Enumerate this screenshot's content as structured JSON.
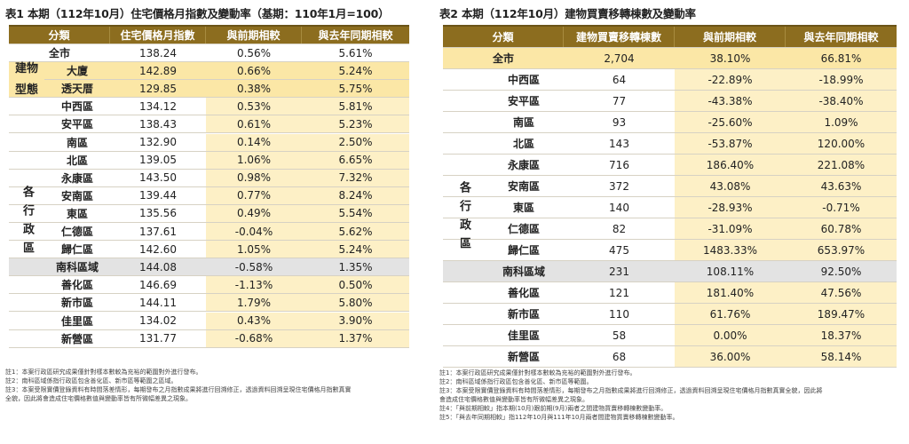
{
  "left": {
    "title": "表1 本期（112年10月）住宅價格月指數及變動率（基期：110年1月=100）",
    "headers": [
      "分類",
      "住宅價格月指數",
      "與前期相較",
      "與去年同期相較"
    ],
    "total": {
      "label": "全市",
      "values": [
        "138.24",
        "0.56%",
        "5.61%"
      ]
    },
    "group1_label": "建物型態",
    "group1_label_line1": "建物",
    "group1_label_line2": "型態",
    "group1": [
      {
        "label": "大廈",
        "values": [
          "142.89",
          "0.66%",
          "5.24%"
        ]
      },
      {
        "label": "透天厝",
        "values": [
          "129.85",
          "0.38%",
          "5.75%"
        ]
      }
    ],
    "group2_label": "各行政區",
    "group2": [
      {
        "label": "中西區",
        "values": [
          "134.12",
          "0.53%",
          "5.81%"
        ]
      },
      {
        "label": "安平區",
        "values": [
          "138.43",
          "0.61%",
          "5.23%"
        ]
      },
      {
        "label": "南區",
        "values": [
          "132.90",
          "0.14%",
          "2.50%"
        ]
      },
      {
        "label": "北區",
        "values": [
          "139.05",
          "1.06%",
          "6.65%"
        ]
      },
      {
        "label": "永康區",
        "values": [
          "143.50",
          "0.98%",
          "7.32%"
        ]
      },
      {
        "label": "安南區",
        "values": [
          "139.44",
          "0.77%",
          "8.24%"
        ]
      },
      {
        "label": "東區",
        "values": [
          "135.56",
          "0.49%",
          "5.54%"
        ]
      },
      {
        "label": "仁德區",
        "values": [
          "137.61",
          "-0.04%",
          "5.62%"
        ]
      },
      {
        "label": "歸仁區",
        "values": [
          "142.60",
          "1.05%",
          "5.24%"
        ]
      },
      {
        "label": "南科區域",
        "values": [
          "144.08",
          "-0.58%",
          "1.35%"
        ]
      },
      {
        "label": "善化區",
        "values": [
          "146.69",
          "-1.13%",
          "0.50%"
        ]
      },
      {
        "label": "新市區",
        "values": [
          "144.11",
          "1.79%",
          "5.80%"
        ]
      },
      {
        "label": "佳里區",
        "values": [
          "134.02",
          "0.43%",
          "3.90%"
        ]
      },
      {
        "label": "新營區",
        "values": [
          "131.77",
          "-0.68%",
          "1.37%"
        ]
      }
    ],
    "notes": [
      "註1：本案行政區研究成果僅針對樣本數較為充裕的範圍對外進行發布。",
      "註2：南科區域係指行政區包含善化區、新市區等範圍之區域。",
      "註3：本案受限實價登錄資料有時間落差情形，每期發布之月指數成果將進行回溯修正，透過資料回溯呈現住宅價格月指數真實",
      "全貌，因此將會造成住宅價格數值與變動率皆有所微幅差異之現象。"
    ]
  },
  "right": {
    "title": "表2 本期（112年10月）建物買賣移轉棟數及變動率",
    "headers": [
      "分類",
      "建物買賣移轉棟數",
      "與前期相較",
      "與去年同期相較"
    ],
    "total": {
      "label": "全市",
      "values": [
        "2,704",
        "38.10%",
        "66.81%"
      ]
    },
    "group_label": "各行政區",
    "rows": [
      {
        "label": "中西區",
        "values": [
          "64",
          "-22.89%",
          "-18.99%"
        ]
      },
      {
        "label": "安平區",
        "values": [
          "77",
          "-43.38%",
          "-38.40%"
        ]
      },
      {
        "label": "南區",
        "values": [
          "93",
          "-25.60%",
          "1.09%"
        ]
      },
      {
        "label": "北區",
        "values": [
          "143",
          "-53.87%",
          "120.00%"
        ]
      },
      {
        "label": "永康區",
        "values": [
          "716",
          "186.40%",
          "221.08%"
        ]
      },
      {
        "label": "安南區",
        "values": [
          "372",
          "43.08%",
          "43.63%"
        ]
      },
      {
        "label": "東區",
        "values": [
          "140",
          "-28.93%",
          "-0.71%"
        ]
      },
      {
        "label": "仁德區",
        "values": [
          "82",
          "-31.09%",
          "60.78%"
        ]
      },
      {
        "label": "歸仁區",
        "values": [
          "475",
          "1483.33%",
          "653.97%"
        ]
      },
      {
        "label": "南科區域",
        "values": [
          "231",
          "108.11%",
          "92.50%"
        ]
      },
      {
        "label": "善化區",
        "values": [
          "121",
          "181.40%",
          "47.56%"
        ]
      },
      {
        "label": "新市區",
        "values": [
          "110",
          "61.76%",
          "189.47%"
        ]
      },
      {
        "label": "佳里區",
        "values": [
          "58",
          "0.00%",
          "18.37%"
        ]
      },
      {
        "label": "新營區",
        "values": [
          "68",
          "36.00%",
          "58.14%"
        ]
      }
    ],
    "notes": [
      "註1：本案行政區研究成果僅針對樣本數較為充裕的範圍對外進行發布。",
      "註2：南科區域係指行政區包含善化區、新市區等範圍。",
      "註3：本案受限實價登錄資料有時間落差情形，每期發布之月指數成果將進行回溯修正，透過資料回溯呈現住宅價格月指數真實全貌，因此將",
      "會造成住宅價格數值與變動率皆有所微幅差異之現象。",
      "註4：「與前期相較」指本期(10月)跟前期(9月)兩者之間建物買賣移轉棟數變動率。",
      "註5：「與去年同期相較」指112年10月與111年10月兩者間建物買賣移轉棟數變動率。"
    ]
  },
  "colors": {
    "header": "#8c6d1f",
    "highlight": "#fbe7a6",
    "gray_row": "#e3e3e3"
  }
}
